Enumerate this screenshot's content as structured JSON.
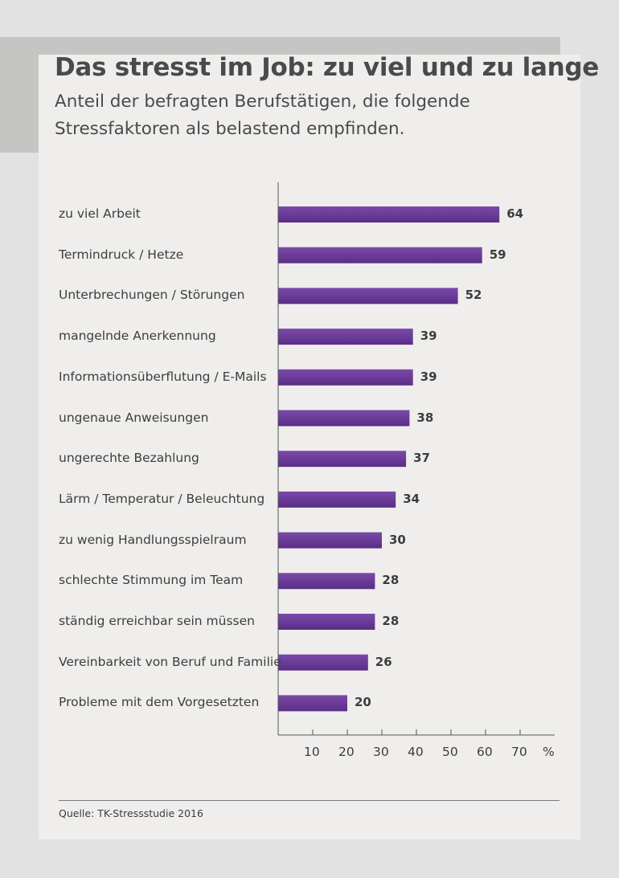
{
  "header": {
    "title": "Das stresst im Job: zu viel und zu lange",
    "subtitle": "Anteil der befragten Berufstätigen, die folgende Stressfaktoren als belastend empfinden."
  },
  "source": "Quelle: TK-Stressstudie 2016",
  "colors": {
    "bar": "#5b2d88",
    "bar_light": "#7a4aa8",
    "axis": "#555555"
  },
  "chart_data": {
    "type": "bar",
    "orientation": "horizontal",
    "title": "Das stresst im Job: zu viel und zu lange",
    "subtitle": "Anteil der befragten Berufstätigen, die folgende Stressfaktoren als belastend empfinden.",
    "categories": [
      "zu viel Arbeit",
      "Termindruck / Hetze",
      "Unterbrechungen / Störungen",
      "mangelnde Anerkennung",
      "Informationsüberflutung / E-Mails",
      "ungenaue Anweisungen",
      "ungerechte Bezahlung",
      "Lärm / Temperatur / Beleuchtung",
      "zu wenig Handlungsspielraum",
      "schlechte Stimmung im Team",
      "ständig erreichbar sein müssen",
      "Vereinbarkeit von Beruf und Familie",
      "Probleme mit dem Vorgesetzten"
    ],
    "values": [
      64,
      59,
      52,
      39,
      39,
      38,
      37,
      34,
      30,
      28,
      28,
      26,
      20
    ],
    "xticks": [
      10,
      20,
      30,
      40,
      50,
      60,
      70
    ],
    "xunit": "%",
    "xlim": [
      0,
      80
    ],
    "grid": false,
    "legend": "none"
  }
}
